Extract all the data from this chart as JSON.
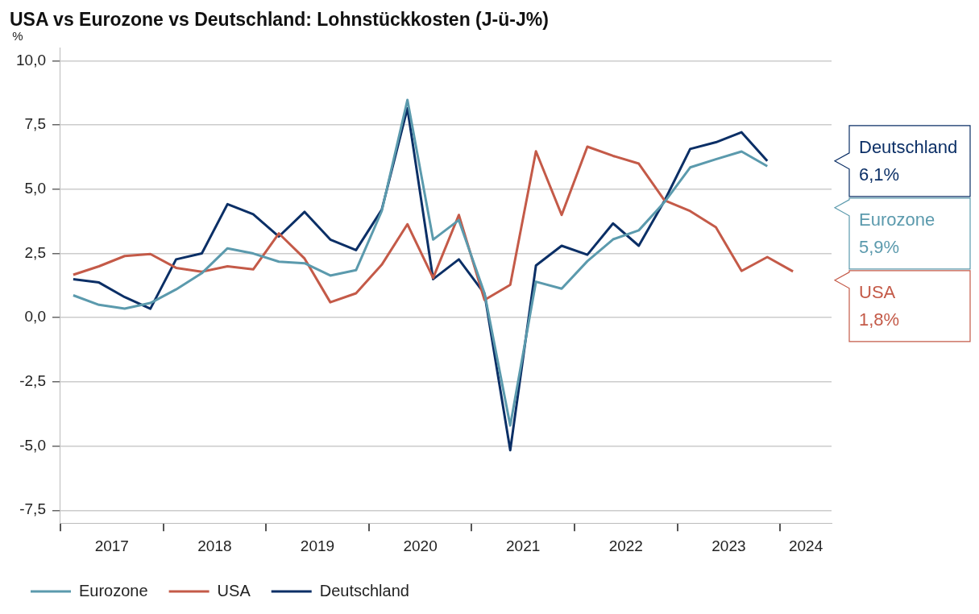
{
  "chart_data": {
    "type": "line",
    "title": "USA vs Eurozone vs Deutschland: Lohnstückkosten (J-ü-J%)",
    "ylabel": "%",
    "x": [
      2017.125,
      2017.375,
      2017.625,
      2017.875,
      2018.125,
      2018.375,
      2018.625,
      2018.875,
      2019.125,
      2019.375,
      2019.625,
      2019.875,
      2020.125,
      2020.375,
      2020.625,
      2020.875,
      2021.125,
      2021.375,
      2021.625,
      2021.875,
      2022.125,
      2022.375,
      2022.625,
      2022.875,
      2023.125,
      2023.375,
      2023.625,
      2023.875,
      2024.125
    ],
    "series": [
      {
        "name": "Eurozone",
        "color": "#5b9aad",
        "values": [
          0.87,
          0.5,
          0.35,
          0.57,
          1.1,
          1.73,
          2.7,
          2.5,
          2.18,
          2.12,
          1.64,
          1.85,
          4.15,
          8.48,
          3.04,
          3.8,
          0.95,
          -4.2,
          1.4,
          1.13,
          2.2,
          3.05,
          3.4,
          4.5,
          5.85,
          6.17,
          6.47,
          5.9,
          null
        ]
      },
      {
        "name": "USA",
        "color": "#c45a48",
        "values": [
          1.67,
          2.0,
          2.4,
          2.48,
          1.94,
          1.79,
          2.0,
          1.88,
          3.28,
          2.3,
          0.6,
          0.95,
          2.06,
          3.64,
          1.55,
          4.0,
          0.69,
          1.28,
          6.48,
          4.0,
          6.66,
          6.3,
          6.0,
          4.57,
          4.15,
          3.52,
          1.82,
          2.36,
          1.8
        ]
      },
      {
        "name": "Deutschland",
        "color": "#0b2f66",
        "values": [
          1.5,
          1.37,
          0.8,
          0.35,
          2.27,
          2.5,
          4.42,
          4.03,
          3.16,
          4.12,
          3.04,
          2.63,
          4.2,
          8.15,
          1.5,
          2.27,
          0.93,
          -5.16,
          2.03,
          2.8,
          2.45,
          3.67,
          2.8,
          4.55,
          6.57,
          6.83,
          7.22,
          6.1,
          null
        ]
      }
    ],
    "xlim": [
      2017,
      2024.5
    ],
    "xticks": [
      {
        "value": 2017,
        "label": null
      },
      {
        "value": 2017.5,
        "label": "2017"
      },
      {
        "value": 2018,
        "label": null
      },
      {
        "value": 2018.5,
        "label": "2018"
      },
      {
        "value": 2019,
        "label": null
      },
      {
        "value": 2019.5,
        "label": "2019"
      },
      {
        "value": 2020,
        "label": null
      },
      {
        "value": 2020.5,
        "label": "2020"
      },
      {
        "value": 2021,
        "label": null
      },
      {
        "value": 2021.5,
        "label": "2021"
      },
      {
        "value": 2022,
        "label": null
      },
      {
        "value": 2022.5,
        "label": "2022"
      },
      {
        "value": 2023,
        "label": null
      },
      {
        "value": 2023.5,
        "label": "2023"
      },
      {
        "value": 2024,
        "label": null
      },
      {
        "value": 2024.25,
        "label": "2024"
      }
    ],
    "ylim": [
      -8,
      10.5
    ],
    "yticks": [
      {
        "value": -7.5,
        "label": "-7,5"
      },
      {
        "value": -5,
        "label": "-5,0"
      },
      {
        "value": -2.5,
        "label": "-2,5"
      },
      {
        "value": 0,
        "label": "0,0"
      },
      {
        "value": 2.5,
        "label": "2,5"
      },
      {
        "value": 5,
        "label": "5,0"
      },
      {
        "value": 7.5,
        "label": "7,5"
      },
      {
        "value": 10,
        "label": "10,0"
      }
    ],
    "grid": "y",
    "legend": "bottom left",
    "marker": "none",
    "line_style": "solid",
    "annotations": [
      "Eurozone\n5,9%",
      "USA\n1,8%",
      "Deutschland\n6,1%"
    ]
  }
}
